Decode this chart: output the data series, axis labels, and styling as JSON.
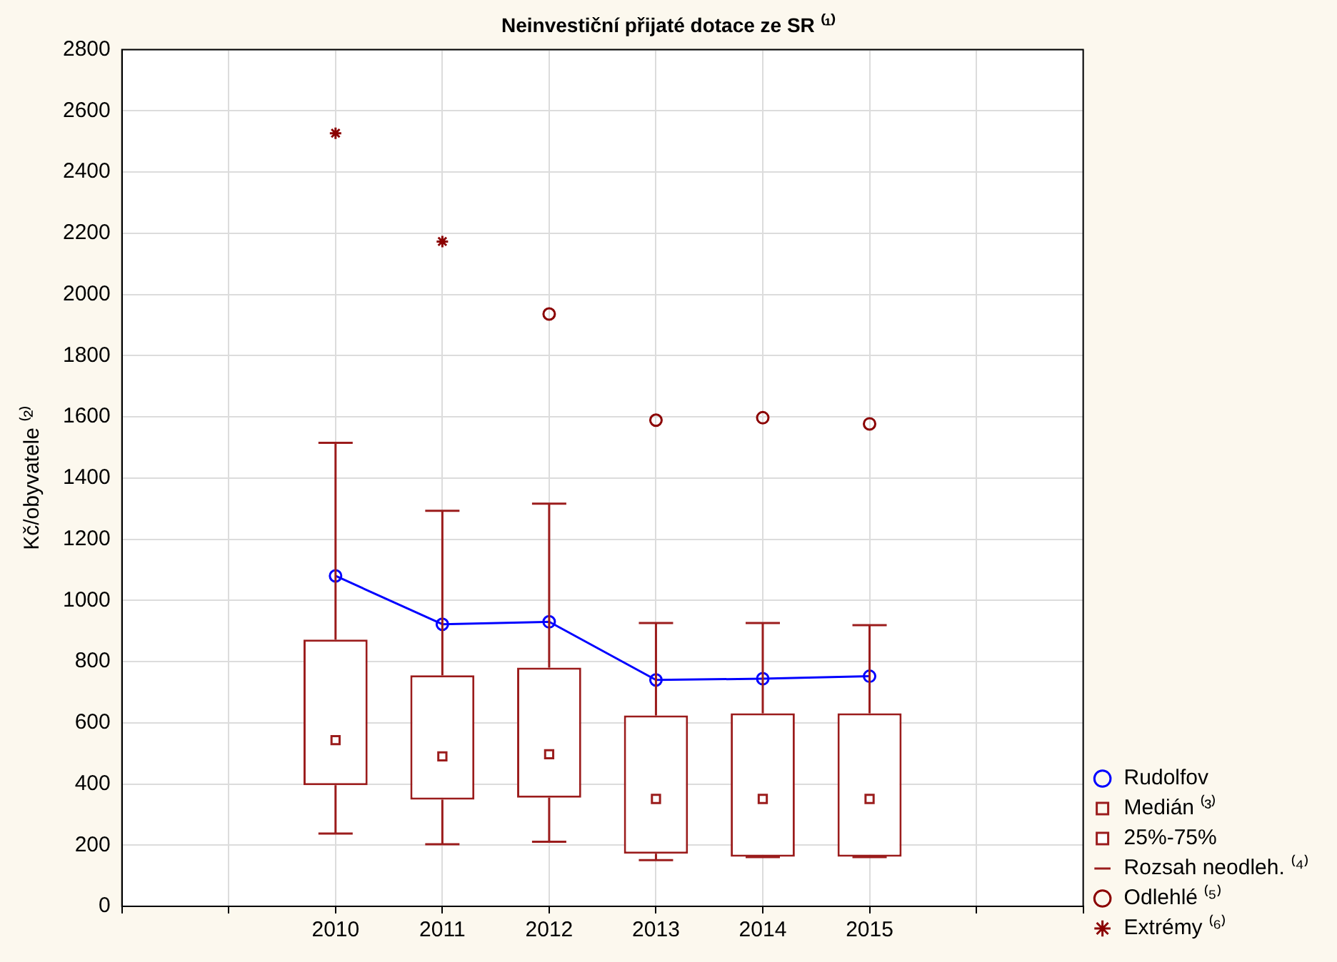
{
  "chart_data": {
    "type": "box",
    "title": "Neinvestiční přijaté dotace ze SR ⁽¹⁾",
    "ylabel": "Kč/obyvatele ⁽²⁾",
    "categories": [
      null,
      null,
      "2010",
      "2011",
      "2012",
      "2013",
      "2014",
      "2015",
      null,
      null
    ],
    "series": [
      {
        "type": "line",
        "name": "Rudolfov",
        "color": "#0000ff",
        "marker": "circle",
        "values": [
          null,
          null,
          1080,
          922,
          930,
          740,
          744,
          752,
          null,
          null
        ]
      },
      {
        "name": "25%-75%",
        "color": "#9b1c1c",
        "boxes": [
          null,
          null,
          {
            "low": 238,
            "q1": 396,
            "median": 543,
            "q3": 872,
            "high": 1515
          },
          {
            "low": 203,
            "q1": 349,
            "median": 490,
            "q3": 755,
            "high": 1293
          },
          {
            "low": 211,
            "q1": 355,
            "median": 497,
            "q3": 780,
            "high": 1316
          },
          {
            "low": 151,
            "q1": 172,
            "median": 351,
            "q3": 624,
            "high": 926
          },
          {
            "low": 161,
            "q1": 162,
            "median": 351,
            "q3": 631,
            "high": 926
          },
          {
            "low": 161,
            "q1": 162,
            "median": 351,
            "q3": 631,
            "high": 919
          },
          null,
          null
        ]
      },
      {
        "type": "scatter",
        "name": "Odlehlé ⁽⁵⁾",
        "color": "#8b0000",
        "marker": "circle",
        "values": [
          null,
          null,
          null,
          null,
          1936,
          1589,
          1597,
          1577,
          null,
          null
        ]
      },
      {
        "type": "scatter",
        "name": "Extrémy ⁽⁶⁾",
        "color": "#8b0000",
        "marker": "cross",
        "values": [
          null,
          null,
          2527,
          2173,
          null,
          null,
          null,
          null,
          null,
          null
        ]
      }
    ],
    "annotations": [
      "Medián ⁽³⁾",
      "Rozsah neodleh. ⁽⁴⁾"
    ],
    "ylim": [
      0,
      2800
    ],
    "yticks": [
      0,
      200,
      400,
      600,
      800,
      1000,
      1200,
      1400,
      1600,
      1800,
      2000,
      2200,
      2400,
      2600,
      2800
    ],
    "grid": true,
    "legend": "bottom right"
  }
}
